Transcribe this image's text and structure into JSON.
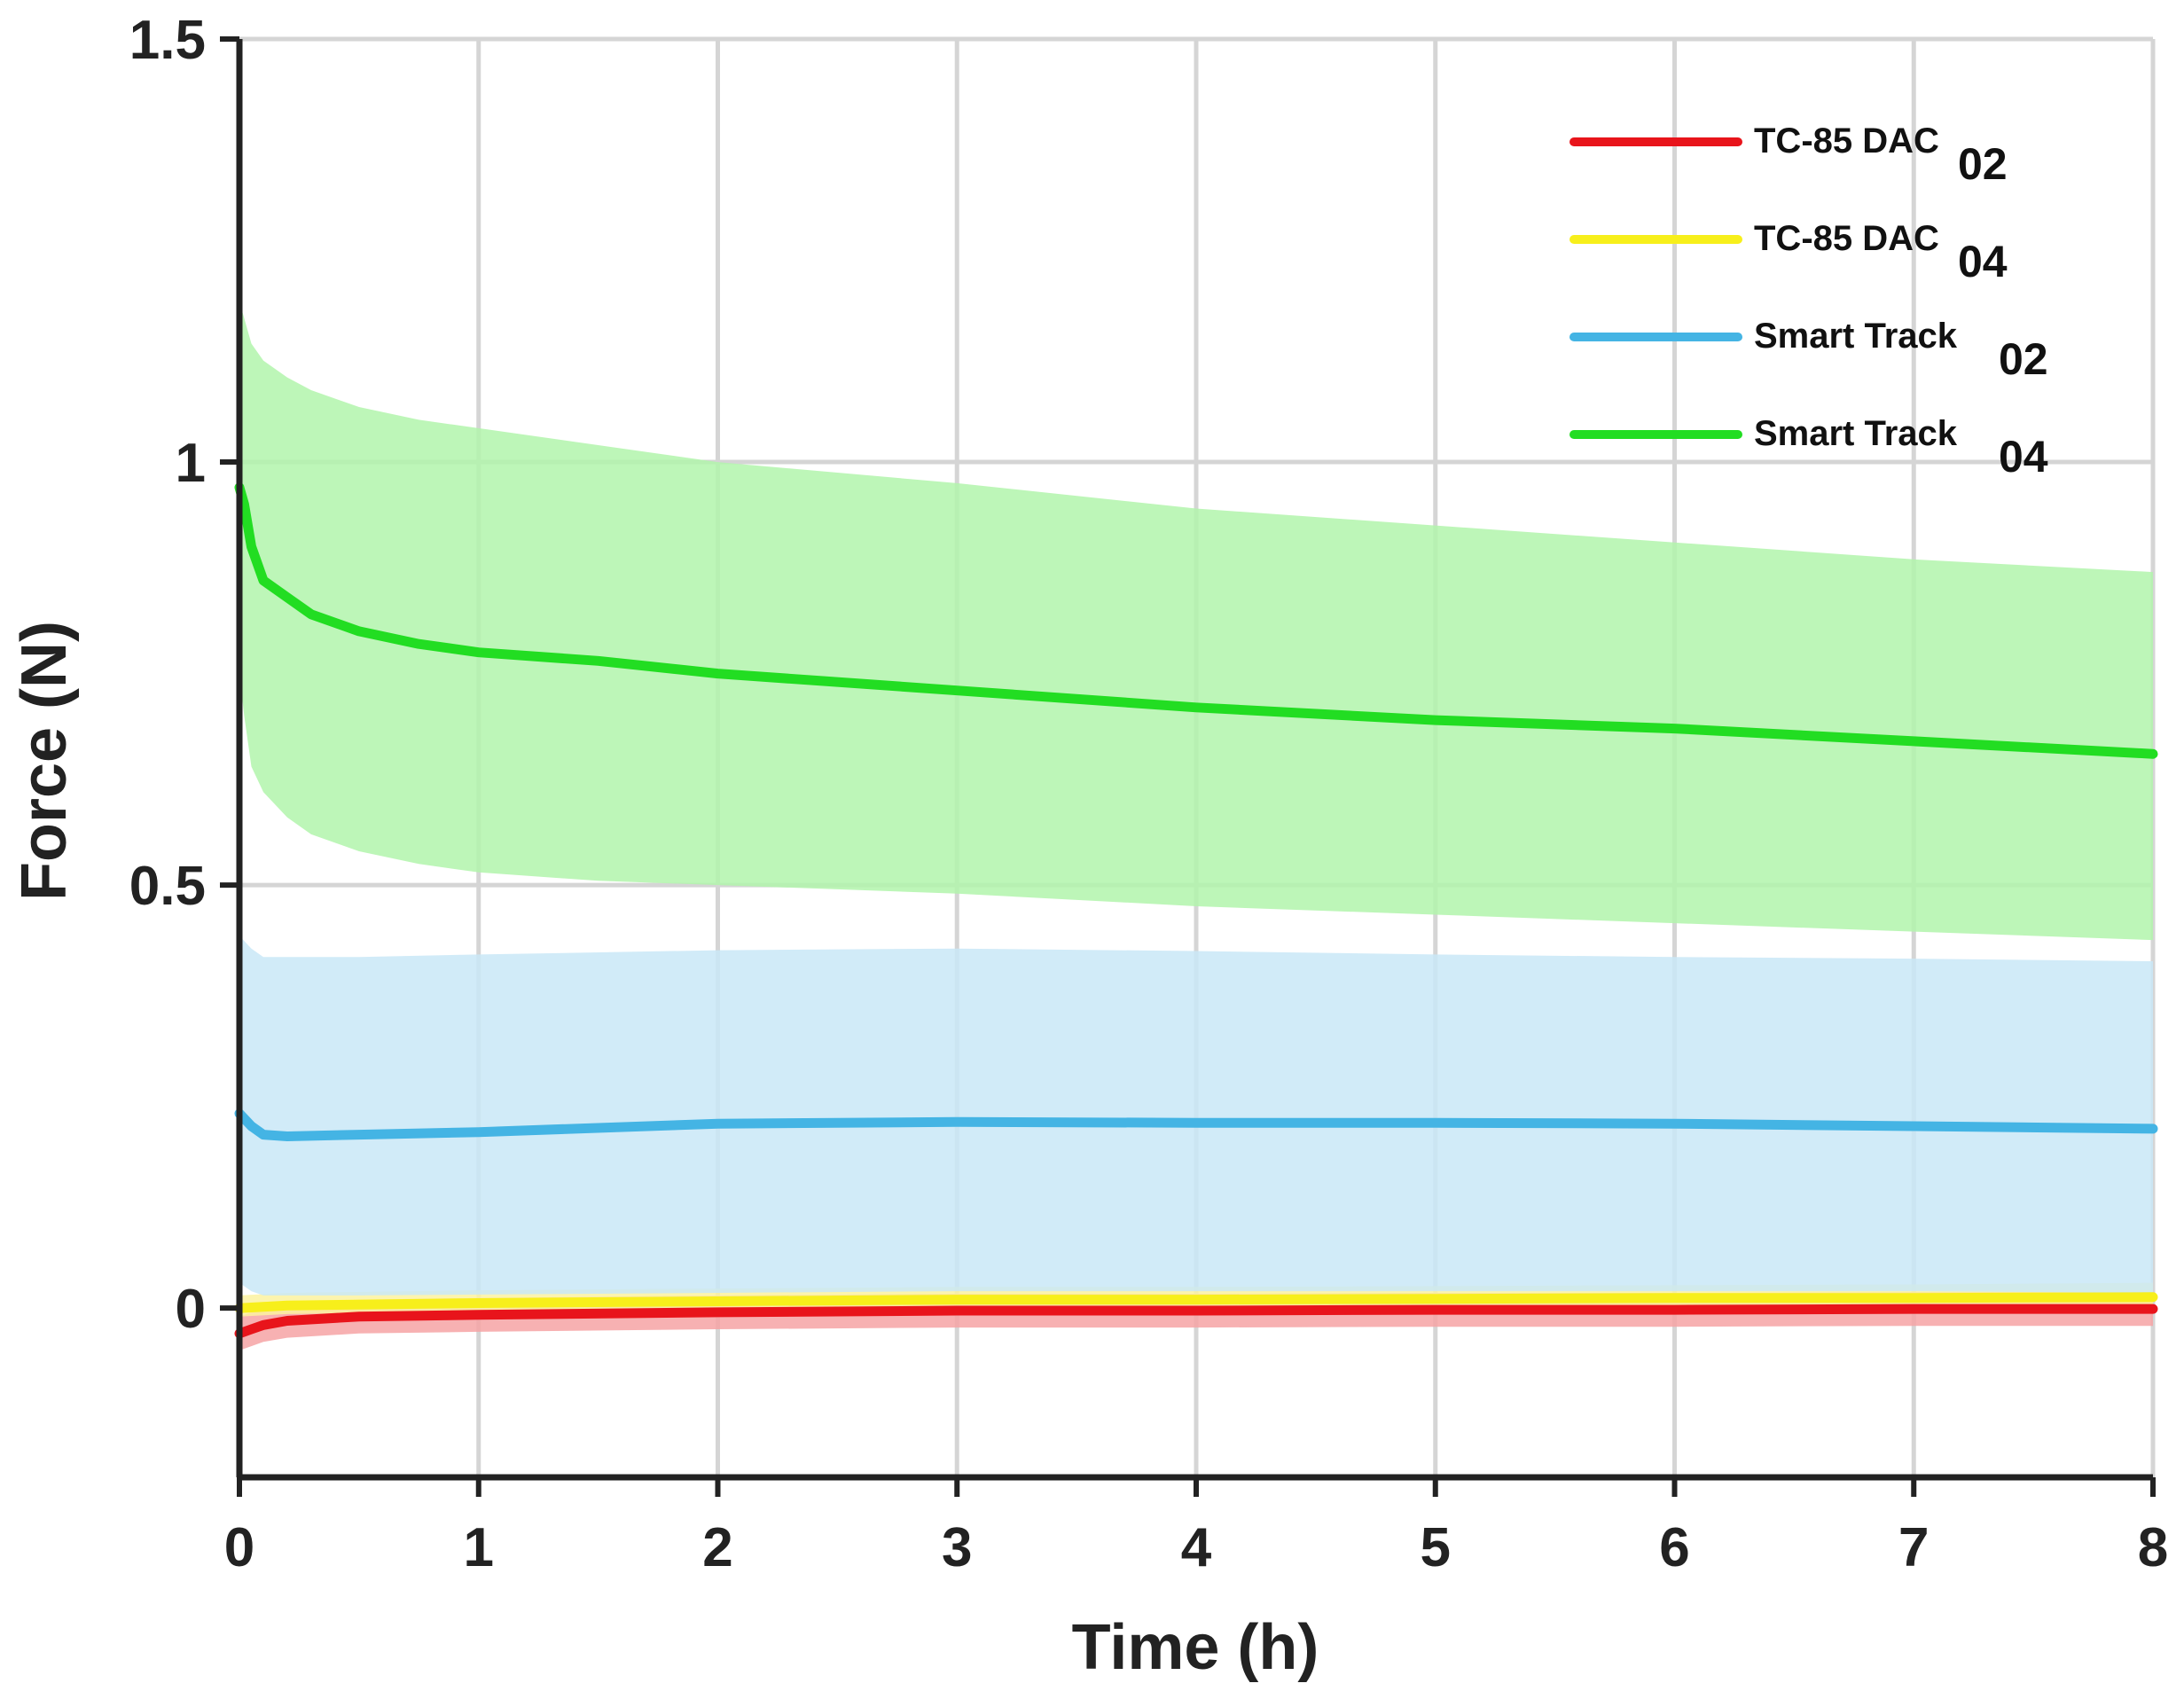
{
  "chart_data": {
    "type": "line",
    "title": "",
    "xlabel": "Time (h)",
    "ylabel": "Force (N)",
    "xlim": [
      0,
      8
    ],
    "ylim": [
      -0.2,
      1.5
    ],
    "x_ticks": [
      0,
      1,
      2,
      3,
      4,
      5,
      6,
      7,
      8
    ],
    "y_ticks": [
      {
        "value": 0,
        "label": "0"
      },
      {
        "value": 0.5,
        "label": "0.5"
      },
      {
        "value": 1,
        "label": "1"
      },
      {
        "value": 1.5,
        "label": "1.5"
      }
    ],
    "grid": true,
    "legend_position": "top-right",
    "series": [
      {
        "name": "TC-85 DAC",
        "subscript": "02",
        "color": "#e8141b",
        "band_color": "#f6a3a5",
        "x": [
          0,
          0.05,
          0.1,
          0.2,
          0.5,
          1,
          2,
          3,
          4,
          5,
          6,
          7,
          8
        ],
        "mean": [
          -0.03,
          -0.025,
          -0.02,
          -0.015,
          -0.01,
          -0.008,
          -0.005,
          -0.003,
          -0.003,
          -0.002,
          -0.002,
          -0.001,
          -0.001
        ],
        "lower": [
          -0.05,
          -0.045,
          -0.04,
          -0.035,
          -0.03,
          -0.028,
          -0.025,
          -0.023,
          -0.023,
          -0.022,
          -0.022,
          -0.021,
          -0.021
        ],
        "upper": [
          -0.01,
          -0.005,
          0.0,
          0.005,
          0.01,
          0.012,
          0.015,
          0.017,
          0.017,
          0.018,
          0.018,
          0.019,
          0.019
        ]
      },
      {
        "name": "TC-85 DAC",
        "subscript": "04",
        "color": "#f7ef1b",
        "band_color": "#fbf2a0",
        "x": [
          0,
          0.2,
          1,
          2,
          3,
          4,
          5,
          6,
          7,
          8
        ],
        "mean": [
          0.0,
          0.003,
          0.006,
          0.008,
          0.01,
          0.01,
          0.011,
          0.012,
          0.012,
          0.013
        ],
        "lower": [
          -0.01,
          -0.007,
          -0.004,
          -0.002,
          0.0,
          0.0,
          0.001,
          0.002,
          0.002,
          0.003
        ],
        "upper": [
          0.015,
          0.018,
          0.021,
          0.023,
          0.025,
          0.025,
          0.026,
          0.027,
          0.028,
          0.03
        ]
      },
      {
        "name": "Smart Track",
        "subscript": "02",
        "color": "#44b4e4",
        "band_color": "#c9e8f7",
        "x": [
          0,
          0.05,
          0.1,
          0.2,
          0.5,
          1,
          2,
          3,
          4,
          5,
          6,
          7,
          8
        ],
        "mean": [
          0.23,
          0.215,
          0.205,
          0.203,
          0.205,
          0.208,
          0.218,
          0.22,
          0.219,
          0.219,
          0.218,
          0.215,
          0.212
        ],
        "lower": [
          0.03,
          0.02,
          0.015,
          0.015,
          0.015,
          0.016,
          0.018,
          0.02,
          0.02,
          0.02,
          0.02,
          0.02,
          0.018
        ],
        "upper": [
          0.44,
          0.425,
          0.415,
          0.415,
          0.415,
          0.418,
          0.423,
          0.425,
          0.422,
          0.418,
          0.415,
          0.413,
          0.41
        ]
      },
      {
        "name": "Smart Track",
        "subscript": "04",
        "color": "#22dd22",
        "band_color": "#b2f5ab",
        "x": [
          0,
          0.02,
          0.05,
          0.1,
          0.2,
          0.3,
          0.5,
          0.75,
          1,
          1.5,
          2,
          3,
          4,
          5,
          6,
          7,
          8
        ],
        "mean": [
          0.97,
          0.95,
          0.9,
          0.86,
          0.84,
          0.82,
          0.8,
          0.785,
          0.775,
          0.765,
          0.75,
          0.73,
          0.71,
          0.695,
          0.685,
          0.67,
          0.655
        ],
        "lower": [
          0.75,
          0.7,
          0.64,
          0.61,
          0.58,
          0.56,
          0.54,
          0.525,
          0.515,
          0.505,
          0.5,
          0.49,
          0.475,
          0.465,
          0.455,
          0.445,
          0.435
        ],
        "upper": [
          1.19,
          1.17,
          1.14,
          1.12,
          1.1,
          1.085,
          1.065,
          1.05,
          1.04,
          1.02,
          1.0,
          0.975,
          0.945,
          0.925,
          0.905,
          0.885,
          0.87
        ]
      }
    ]
  }
}
